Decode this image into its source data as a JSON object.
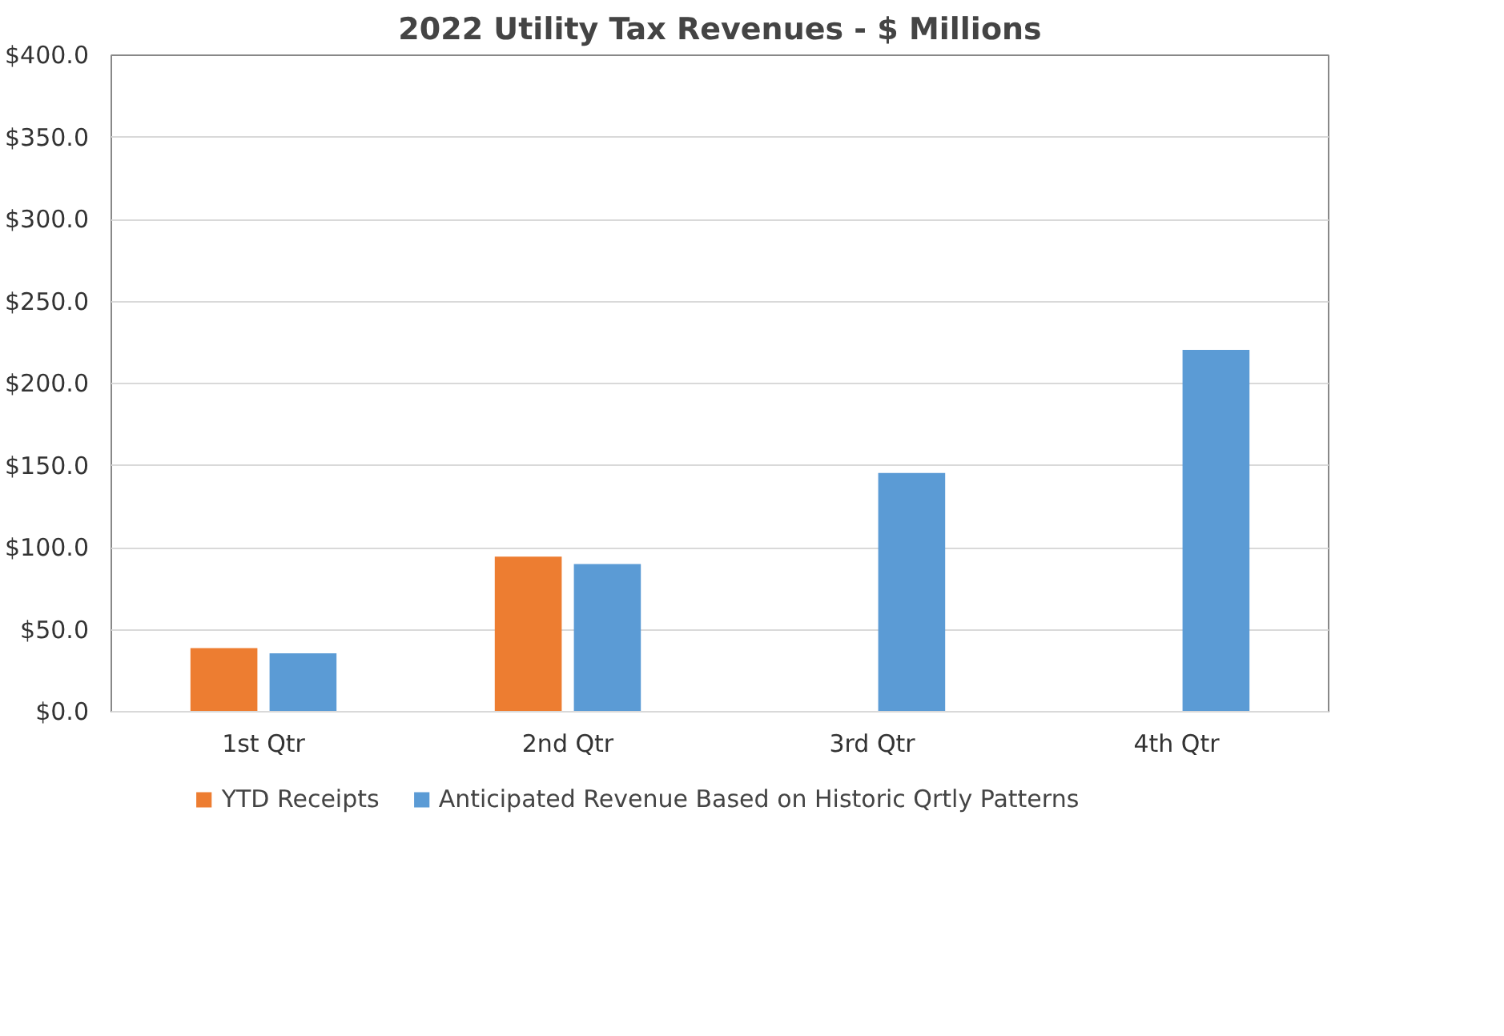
{
  "chart_data": {
    "type": "bar",
    "title": "2022 Utility Tax Revenues - $ Millions",
    "categories": [
      "1st Qtr",
      "2nd Qtr",
      "3rd Qtr",
      "4th Qtr"
    ],
    "series": [
      {
        "name": "YTD Receipts",
        "color": "#ed7d31",
        "values": [
          38.8,
          94.5,
          null,
          null
        ]
      },
      {
        "name": "Anticipated Revenue Based on Historic Qrtly Patterns",
        "color": "#5b9bd5",
        "values": [
          35.6,
          90.0,
          145.5,
          220.5
        ]
      }
    ],
    "ylim": [
      0,
      400
    ],
    "yticks": [
      {
        "value": 0,
        "label": "$0.0"
      },
      {
        "value": 50,
        "label": "$50.0"
      },
      {
        "value": 100,
        "label": "$100.0"
      },
      {
        "value": 150,
        "label": "$150.0"
      },
      {
        "value": 200,
        "label": "$200.0"
      },
      {
        "value": 250,
        "label": "$250.0"
      },
      {
        "value": 300,
        "label": "$300.0"
      },
      {
        "value": 350,
        "label": "$350.0"
      },
      {
        "value": 400,
        "label": "$400.0"
      }
    ],
    "grid": "y",
    "legend": "bottom"
  }
}
